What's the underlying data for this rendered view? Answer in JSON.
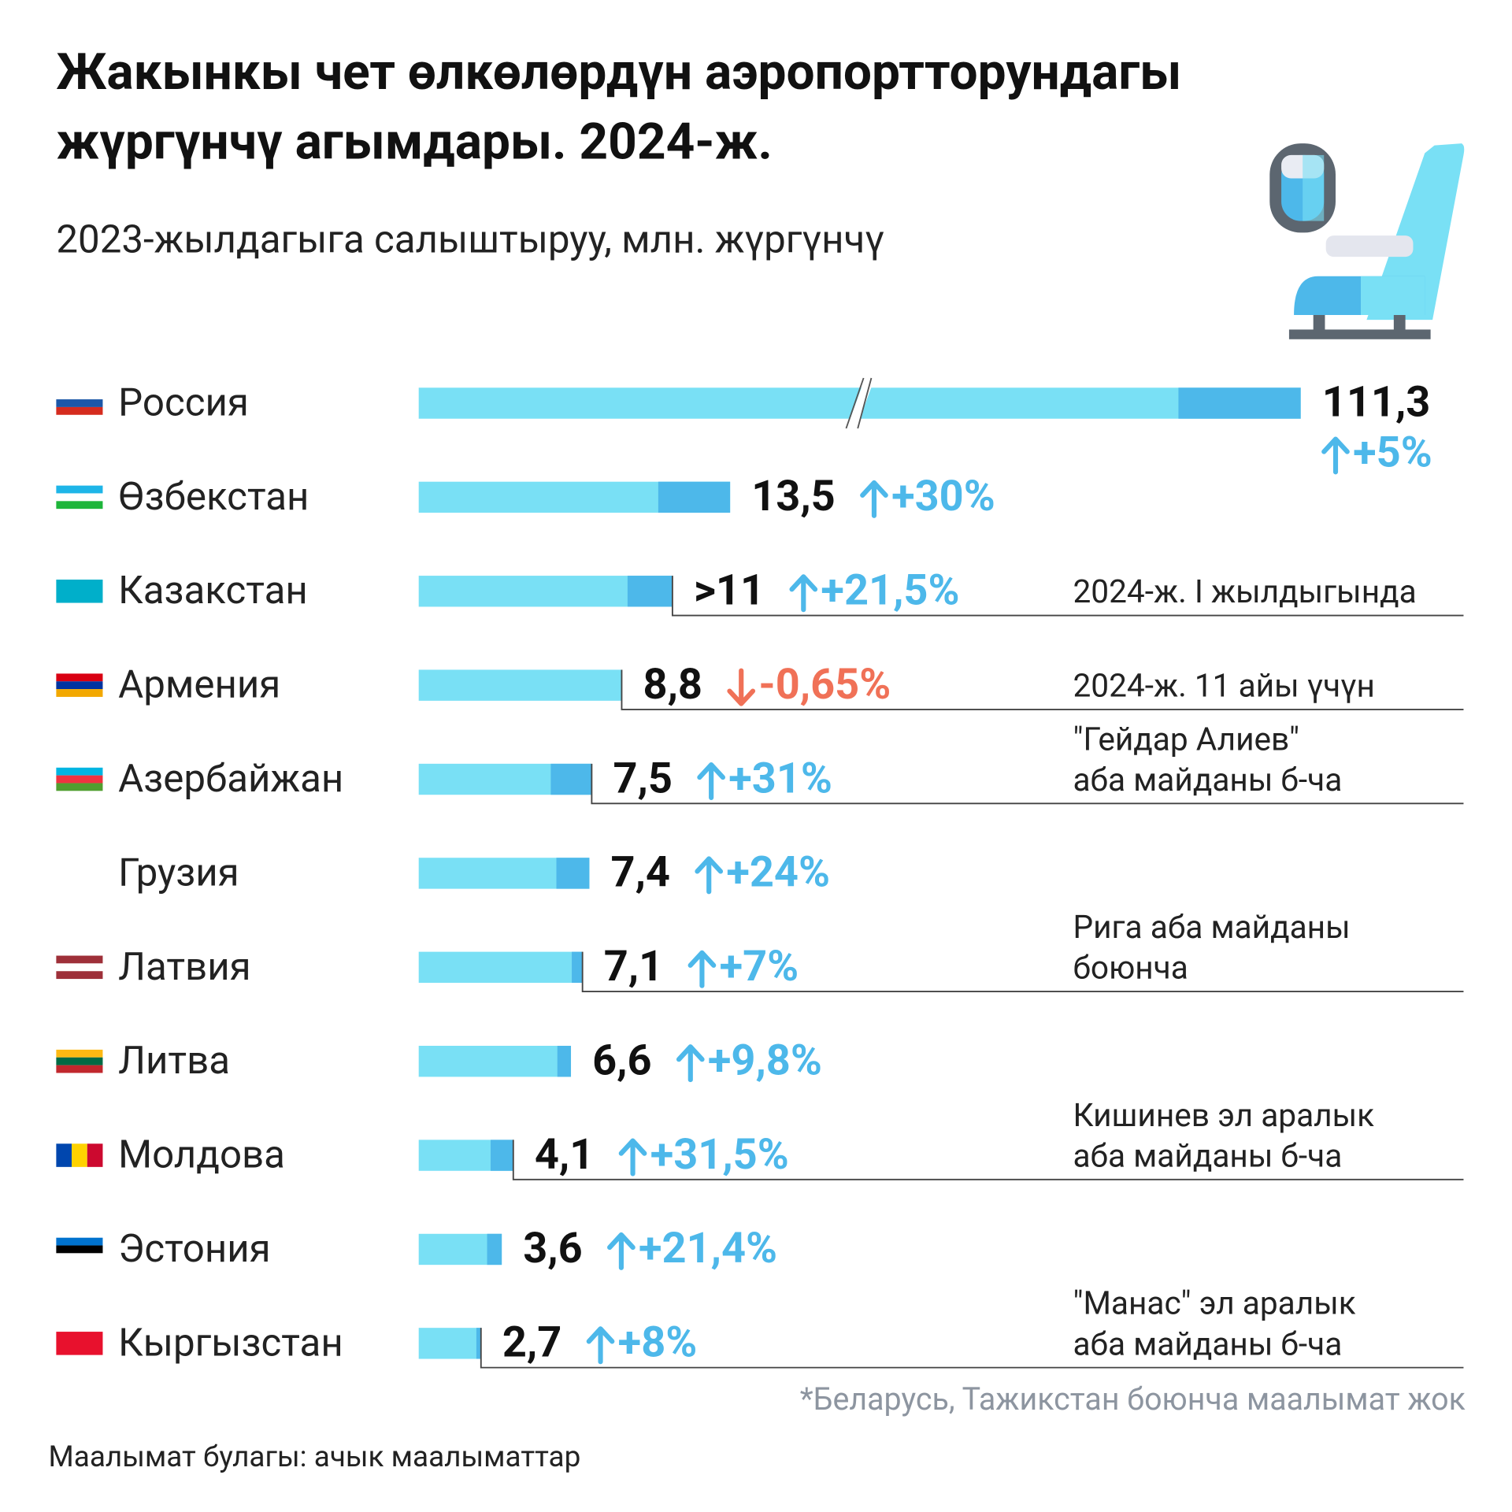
{
  "chart_data": {
    "type": "bar",
    "orientation": "horizontal",
    "title": [
      "Жакынкы чет өлкөлөрдүн аэропортторундагы",
      "жүргүнчү агымдары. 2024-ж."
    ],
    "subtitle": "2023-жылдагыга салыштыруу, млн. жүргүнчү",
    "categories": [
      "Россия",
      "Өзбекстан",
      "Казакстан",
      "Армения",
      "Азербайжан",
      "Грузия",
      "Латвия",
      "Литва",
      "Молдова",
      "Эстония",
      "Кыргызстан"
    ],
    "values": [
      111.3,
      13.5,
      11,
      8.8,
      7.5,
      7.4,
      7.1,
      6.6,
      4.1,
      3.6,
      2.7
    ],
    "value_labels": [
      "111,3",
      "13,5",
      ">11",
      "8,8",
      "7,5",
      "7,4",
      "7,1",
      "6,6",
      "4,1",
      "3,6",
      "2,7"
    ],
    "changes": [
      5,
      30,
      21.5,
      -0.65,
      31,
      24,
      7,
      9.8,
      31.5,
      21.4,
      8
    ],
    "change_labels": [
      "+5%",
      "+30%",
      "+21,5%",
      "-0,65%",
      "+31%",
      "+24%",
      "+7%",
      "+9,8%",
      "+31,5%",
      "+21,4%",
      "+8%"
    ],
    "notes": [
      null,
      null,
      [
        "2024-ж. I жылдыгында"
      ],
      [
        "2024-ж. 11 айы үчүн"
      ],
      [
        "\"Гейдар Алиев\"",
        "аба майданы б-ча"
      ],
      null,
      [
        "Рига аба майданы",
        "боюнча"
      ],
      null,
      [
        "Кишинев эл аралык",
        "аба майданы б-ча"
      ],
      null,
      [
        "\"Манас\" эл аралык",
        "аба майданы б-ча"
      ]
    ],
    "color": "#79e0f5",
    "growth_color": "#4db8ea",
    "up_color": "#4db8ea",
    "down_color": "#f07157",
    "footnote": "*Беларусь, Тажикстан боюнча маалымат жок",
    "source": "Маалымат булагы: ачык маалыматтар"
  }
}
